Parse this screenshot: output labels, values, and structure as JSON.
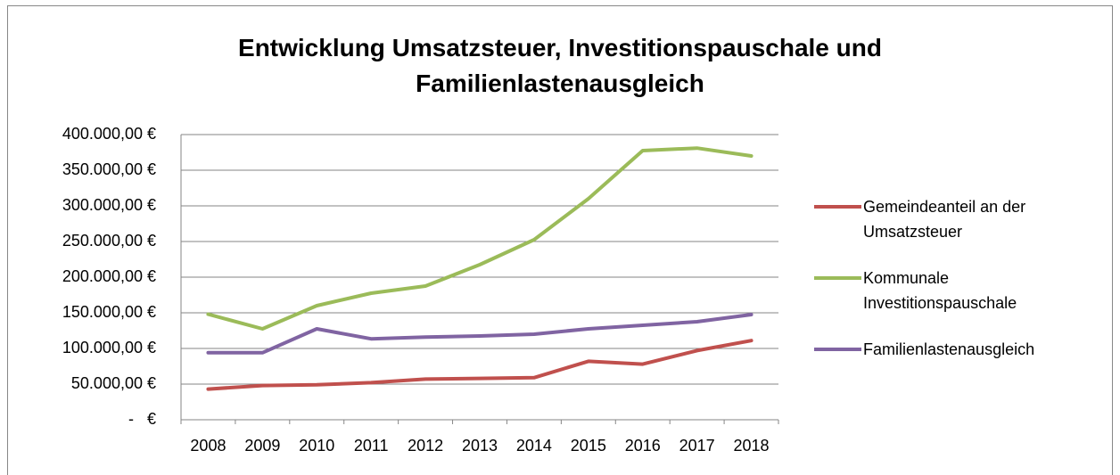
{
  "chart_data": {
    "type": "line",
    "title": "Entwicklung Umsatzsteuer, Investitionspauschale und Familienlastenausgleich",
    "categories": [
      "2008",
      "2009",
      "2010",
      "2011",
      "2012",
      "2013",
      "2014",
      "2015",
      "2016",
      "2017",
      "2018"
    ],
    "series": [
      {
        "name": "Gemeindeanteil an der Umsatzsteuer",
        "color": "#c0504d",
        "values": [
          43000,
          48000,
          49000,
          52000,
          57000,
          58000,
          59000,
          82000,
          78000,
          97000,
          111000
        ]
      },
      {
        "name": "Kommunale Investitionspauschale",
        "color": "#9bbb59",
        "values": [
          148000,
          127500,
          160000,
          177500,
          187500,
          217500,
          252500,
          310000,
          377500,
          381000,
          370000
        ]
      },
      {
        "name": "Familienlastenausgleich",
        "color": "#8064a2",
        "values": [
          94000,
          94000,
          127500,
          113500,
          116000,
          117500,
          120000,
          127500,
          132500,
          137500,
          147500
        ]
      }
    ],
    "ylim": [
      0,
      400000
    ],
    "yticks": [
      {
        "value": 0,
        "label": "-   €"
      },
      {
        "value": 50000,
        "label": "50.000,00 €"
      },
      {
        "value": 100000,
        "label": "100.000,00 €"
      },
      {
        "value": 150000,
        "label": "150.000,00 €"
      },
      {
        "value": 200000,
        "label": "200.000,00 €"
      },
      {
        "value": 250000,
        "label": "250.000,00 €"
      },
      {
        "value": 300000,
        "label": "300.000,00 €"
      },
      {
        "value": 350000,
        "label": "350.000,00 €"
      },
      {
        "value": 400000,
        "label": "400.000,00 €"
      }
    ],
    "grid": true,
    "legend": "right"
  }
}
